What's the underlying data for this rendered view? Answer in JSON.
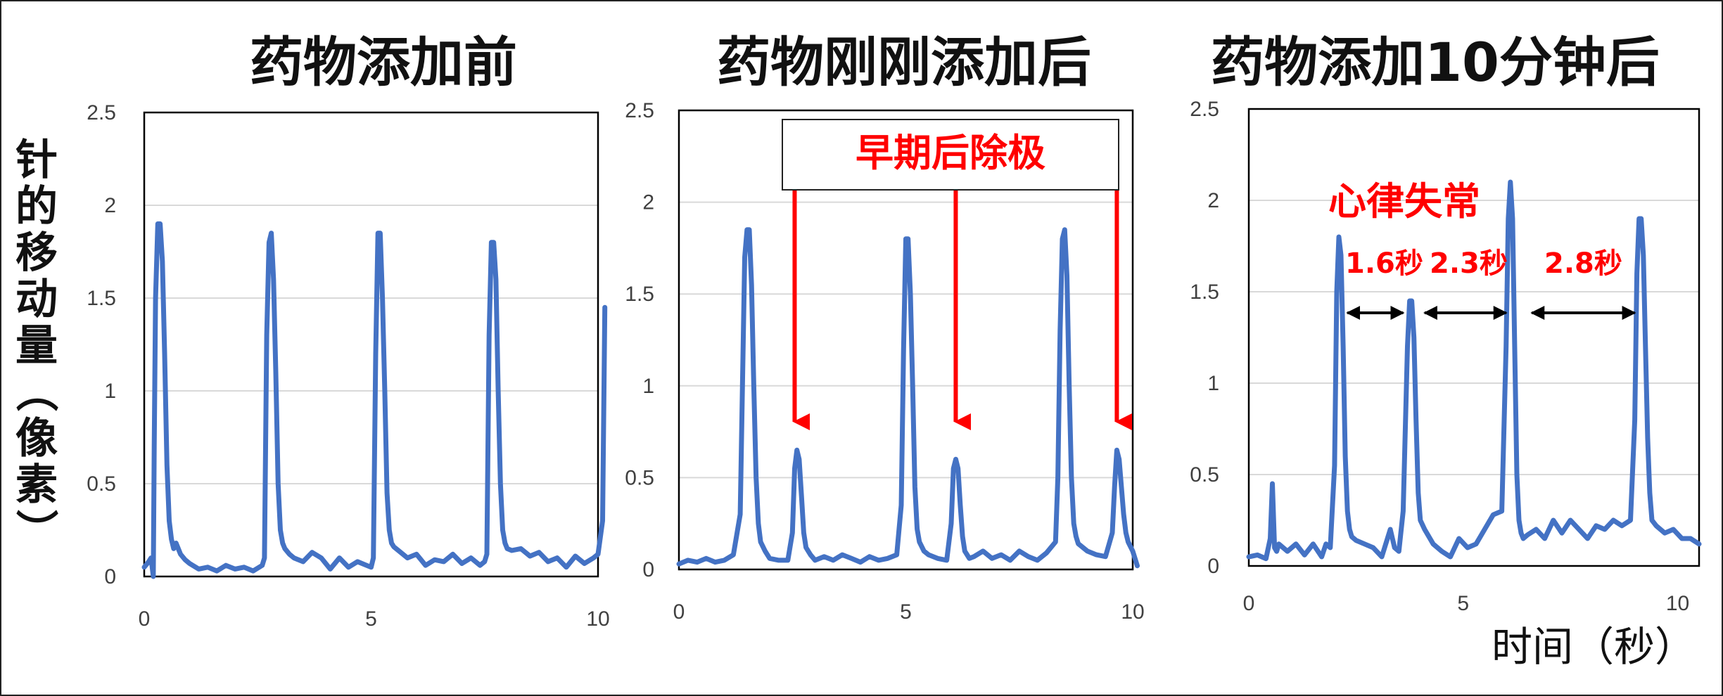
{
  "y_axis_label": "针的移动量（像素）",
  "x_axis_label": "时间（秒）",
  "colors": {
    "line": "#4472c4",
    "annotation": "#ff0000",
    "grid": "#d9d9d9",
    "arrow": "#000000"
  },
  "chart_data": [
    {
      "type": "line",
      "title": "药物添加前",
      "xlim": [
        0,
        10
      ],
      "ylim": [
        0,
        2.5
      ],
      "x_ticks": [
        "0",
        "5",
        "10"
      ],
      "y_ticks": [
        "0",
        "0.5",
        "1",
        "1.5",
        "2",
        "2.5"
      ],
      "grid": "horizontal",
      "series": [
        {
          "x": [
            0,
            0.1,
            0.15,
            0.2,
            0.22,
            0.25,
            0.3,
            0.35,
            0.4,
            0.45,
            0.5,
            0.55,
            0.6,
            0.65,
            0.7,
            0.8,
            0.9,
            1.0,
            1.2,
            1.4,
            1.6,
            1.8,
            2.0,
            2.2,
            2.4,
            2.6,
            2.65,
            2.7,
            2.75,
            2.8,
            2.85,
            2.9,
            2.95,
            3.0,
            3.05,
            3.1,
            3.2,
            3.3,
            3.5,
            3.7,
            3.9,
            4.1,
            4.3,
            4.5,
            4.7,
            4.9,
            5.0,
            5.05,
            5.1,
            5.15,
            5.2,
            5.25,
            5.3,
            5.35,
            5.4,
            5.45,
            5.5,
            5.6,
            5.8,
            6.0,
            6.2,
            6.4,
            6.6,
            6.8,
            7.0,
            7.2,
            7.4,
            7.5,
            7.55,
            7.6,
            7.65,
            7.7,
            7.75,
            7.8,
            7.85,
            7.9,
            7.95,
            8.0,
            8.1,
            8.3,
            8.5,
            8.7,
            8.9,
            9.1,
            9.3,
            9.5,
            9.7,
            9.9,
            10.0,
            10.1,
            10.15
          ],
          "y": [
            0.05,
            0.08,
            0.1,
            0.0,
            0.7,
            1.5,
            1.9,
            1.9,
            1.7,
            1.2,
            0.6,
            0.3,
            0.2,
            0.15,
            0.18,
            0.12,
            0.09,
            0.07,
            0.04,
            0.05,
            0.03,
            0.06,
            0.04,
            0.05,
            0.03,
            0.06,
            0.1,
            1.3,
            1.8,
            1.85,
            1.6,
            1.1,
            0.5,
            0.25,
            0.18,
            0.15,
            0.12,
            0.1,
            0.08,
            0.13,
            0.1,
            0.04,
            0.1,
            0.05,
            0.08,
            0.06,
            0.05,
            0.1,
            1.2,
            1.85,
            1.85,
            1.5,
            1.0,
            0.45,
            0.25,
            0.18,
            0.16,
            0.14,
            0.1,
            0.12,
            0.06,
            0.09,
            0.08,
            0.12,
            0.07,
            0.1,
            0.06,
            0.08,
            0.12,
            1.3,
            1.8,
            1.8,
            1.6,
            1.0,
            0.5,
            0.25,
            0.18,
            0.15,
            0.14,
            0.15,
            0.11,
            0.13,
            0.08,
            0.1,
            0.05,
            0.11,
            0.07,
            0.1,
            0.12,
            0.3,
            1.45
          ]
        }
      ]
    },
    {
      "type": "line",
      "title": "药物刚刚添加后",
      "xlim": [
        0,
        10
      ],
      "ylim": [
        0,
        2.5
      ],
      "x_ticks": [
        "0",
        "5",
        "10"
      ],
      "y_ticks": [
        "0",
        "0.5",
        "1",
        "1.5",
        "2",
        "2.5"
      ],
      "grid": "horizontal",
      "series": [
        {
          "x": [
            0,
            0.2,
            0.4,
            0.6,
            0.8,
            1.0,
            1.2,
            1.35,
            1.4,
            1.45,
            1.5,
            1.55,
            1.6,
            1.65,
            1.7,
            1.75,
            1.8,
            1.9,
            2.0,
            2.2,
            2.4,
            2.5,
            2.55,
            2.6,
            2.65,
            2.7,
            2.75,
            2.8,
            2.85,
            2.9,
            3.0,
            3.2,
            3.4,
            3.6,
            3.8,
            4.0,
            4.2,
            4.4,
            4.6,
            4.8,
            4.9,
            4.95,
            5.0,
            5.05,
            5.1,
            5.15,
            5.2,
            5.25,
            5.3,
            5.4,
            5.5,
            5.7,
            5.9,
            6.0,
            6.05,
            6.1,
            6.15,
            6.2,
            6.25,
            6.3,
            6.35,
            6.4,
            6.5,
            6.7,
            6.9,
            7.1,
            7.3,
            7.5,
            7.7,
            7.9,
            8.1,
            8.3,
            8.35,
            8.4,
            8.45,
            8.5,
            8.55,
            8.6,
            8.65,
            8.7,
            8.75,
            8.8,
            9.0,
            9.2,
            9.4,
            9.55,
            9.6,
            9.65,
            9.7,
            9.75,
            9.8,
            9.85,
            9.9,
            10.0,
            10.1
          ],
          "y": [
            0.03,
            0.05,
            0.04,
            0.06,
            0.04,
            0.05,
            0.08,
            0.3,
            1.0,
            1.7,
            1.85,
            1.85,
            1.55,
            1.0,
            0.5,
            0.25,
            0.15,
            0.1,
            0.06,
            0.05,
            0.05,
            0.2,
            0.55,
            0.65,
            0.6,
            0.4,
            0.2,
            0.12,
            0.1,
            0.08,
            0.05,
            0.07,
            0.05,
            0.08,
            0.06,
            0.04,
            0.07,
            0.05,
            0.06,
            0.08,
            0.35,
            1.2,
            1.8,
            1.8,
            1.5,
            1.0,
            0.45,
            0.22,
            0.15,
            0.1,
            0.08,
            0.06,
            0.05,
            0.25,
            0.55,
            0.6,
            0.55,
            0.35,
            0.18,
            0.1,
            0.08,
            0.06,
            0.07,
            0.1,
            0.06,
            0.08,
            0.05,
            0.1,
            0.07,
            0.05,
            0.09,
            0.15,
            0.5,
            1.3,
            1.8,
            1.85,
            1.6,
            1.0,
            0.5,
            0.25,
            0.18,
            0.14,
            0.1,
            0.08,
            0.07,
            0.2,
            0.45,
            0.65,
            0.6,
            0.45,
            0.3,
            0.2,
            0.15,
            0.1,
            0.02
          ]
        }
      ],
      "annotations": [
        {
          "text": "早期后除极",
          "arrows_at_x": [
            2.55,
            6.1,
            9.65
          ]
        }
      ]
    },
    {
      "type": "line",
      "title": "药物添加10分钟后",
      "xlim": [
        0,
        10.5
      ],
      "ylim": [
        0,
        2.5
      ],
      "x_ticks": [
        "0",
        "5",
        "10"
      ],
      "y_ticks": [
        "0",
        "0.5",
        "1",
        "1.5",
        "2",
        "2.5"
      ],
      "grid": "horizontal",
      "series": [
        {
          "x": [
            0,
            0.2,
            0.4,
            0.5,
            0.55,
            0.6,
            0.65,
            0.7,
            0.9,
            1.1,
            1.3,
            1.5,
            1.7,
            1.8,
            1.9,
            2.0,
            2.05,
            2.1,
            2.15,
            2.2,
            2.25,
            2.3,
            2.35,
            2.4,
            2.5,
            2.7,
            2.9,
            3.1,
            3.3,
            3.4,
            3.5,
            3.6,
            3.7,
            3.75,
            3.8,
            3.85,
            3.9,
            3.95,
            4.0,
            4.1,
            4.3,
            4.5,
            4.7,
            4.9,
            5.1,
            5.3,
            5.5,
            5.7,
            5.9,
            6.0,
            6.05,
            6.1,
            6.15,
            6.2,
            6.25,
            6.3,
            6.35,
            6.4,
            6.5,
            6.7,
            6.9,
            7.1,
            7.3,
            7.5,
            7.7,
            7.9,
            8.1,
            8.3,
            8.5,
            8.7,
            8.9,
            9.0,
            9.05,
            9.1,
            9.15,
            9.2,
            9.25,
            9.3,
            9.35,
            9.4,
            9.5,
            9.7,
            9.9,
            10.1,
            10.3,
            10.5
          ],
          "y": [
            0.05,
            0.06,
            0.04,
            0.15,
            0.45,
            0.1,
            0.08,
            0.12,
            0.08,
            0.12,
            0.06,
            0.12,
            0.05,
            0.12,
            0.1,
            0.55,
            1.5,
            1.8,
            1.7,
            1.2,
            0.6,
            0.3,
            0.2,
            0.16,
            0.14,
            0.12,
            0.1,
            0.05,
            0.2,
            0.1,
            0.08,
            0.3,
            1.2,
            1.45,
            1.45,
            1.25,
            0.8,
            0.4,
            0.25,
            0.2,
            0.12,
            0.08,
            0.05,
            0.15,
            0.1,
            0.12,
            0.2,
            0.28,
            0.3,
            1.2,
            1.9,
            2.1,
            1.9,
            1.2,
            0.5,
            0.25,
            0.18,
            0.15,
            0.17,
            0.2,
            0.15,
            0.25,
            0.18,
            0.25,
            0.2,
            0.15,
            0.22,
            0.2,
            0.25,
            0.22,
            0.25,
            0.8,
            1.6,
            1.9,
            1.9,
            1.7,
            1.2,
            0.7,
            0.4,
            0.25,
            0.22,
            0.18,
            0.2,
            0.15,
            0.15,
            0.12
          ]
        }
      ],
      "annotations": [
        {
          "text": "心律失常"
        },
        {
          "text": "1.6秒",
          "x_from": 2.3,
          "x_to": 3.6
        },
        {
          "text": "2.3秒",
          "x_from": 4.1,
          "x_to": 6.0
        },
        {
          "text": "2.8秒",
          "x_from": 6.6,
          "x_to": 9.0
        }
      ]
    }
  ]
}
